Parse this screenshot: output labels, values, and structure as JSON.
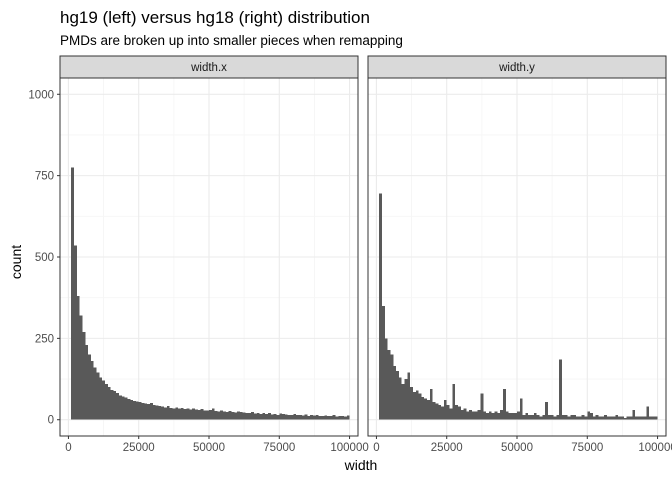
{
  "title": "hg19 (left) versus hg18 (right) distribution",
  "subtitle": "PMDs are broken up into smaller pieces when remapping",
  "colors": {
    "bar": "#595959",
    "panel_background": "#ffffff",
    "panel_border": "#333333",
    "strip_background": "#d9d9d9",
    "grid_major": "#ebebeb",
    "grid_minor": "#f5f5f5"
  },
  "chart_data": {
    "type": "bar",
    "subtype": "faceted histogram",
    "xlabel": "width",
    "ylabel": "count",
    "xlim": [
      -3000,
      103000
    ],
    "ylim": [
      -50,
      1050
    ],
    "x_ticks": [
      0,
      25000,
      50000,
      75000,
      100000
    ],
    "x_tick_labels": [
      "0",
      "25000",
      "50000",
      "75000",
      "100000"
    ],
    "y_ticks": [
      0,
      250,
      500,
      750,
      1000
    ],
    "y_tick_labels": [
      "0",
      "250",
      "500",
      "750",
      "1000"
    ],
    "grid": true,
    "bin_start": 1000,
    "bin_width": 1000,
    "panels": [
      {
        "name": "width.x",
        "counts": [
          775,
          535,
          380,
          320,
          270,
          230,
          200,
          180,
          160,
          145,
          130,
          120,
          110,
          100,
          92,
          88,
          82,
          75,
          72,
          68,
          64,
          60,
          58,
          56,
          55,
          52,
          50,
          48,
          52,
          46,
          44,
          42,
          40,
          38,
          42,
          36,
          35,
          38,
          34,
          36,
          33,
          35,
          32,
          34,
          31,
          30,
          33,
          29,
          28,
          30,
          35,
          27,
          26,
          28,
          25,
          24,
          27,
          23,
          22,
          25,
          24,
          22,
          21,
          20,
          23,
          19,
          20,
          18,
          21,
          17,
          20,
          16,
          18,
          15,
          19,
          17,
          16,
          15,
          14,
          18,
          15,
          14,
          13,
          16,
          12,
          14,
          13,
          15,
          12,
          11,
          13,
          12,
          11,
          14,
          10,
          12,
          11,
          10,
          13
        ]
      },
      {
        "name": "width.y",
        "counts": [
          695,
          350,
          250,
          215,
          200,
          165,
          150,
          130,
          110,
          125,
          145,
          100,
          85,
          90,
          80,
          70,
          65,
          60,
          95,
          55,
          50,
          45,
          40,
          60,
          45,
          35,
          110,
          45,
          40,
          30,
          35,
          25,
          30,
          25,
          25,
          30,
          80,
          25,
          20,
          25,
          20,
          25,
          20,
          30,
          95,
          25,
          20,
          20,
          20,
          25,
          65,
          15,
          20,
          15,
          15,
          20,
          15,
          10,
          15,
          55,
          15,
          15,
          10,
          15,
          185,
          15,
          15,
          10,
          15,
          15,
          10,
          10,
          15,
          10,
          25,
          20,
          10,
          15,
          10,
          10,
          15,
          10,
          10,
          10,
          15,
          10,
          10,
          5,
          10,
          10,
          30,
          10,
          10,
          10,
          10,
          40,
          10,
          10,
          10
        ]
      }
    ]
  }
}
